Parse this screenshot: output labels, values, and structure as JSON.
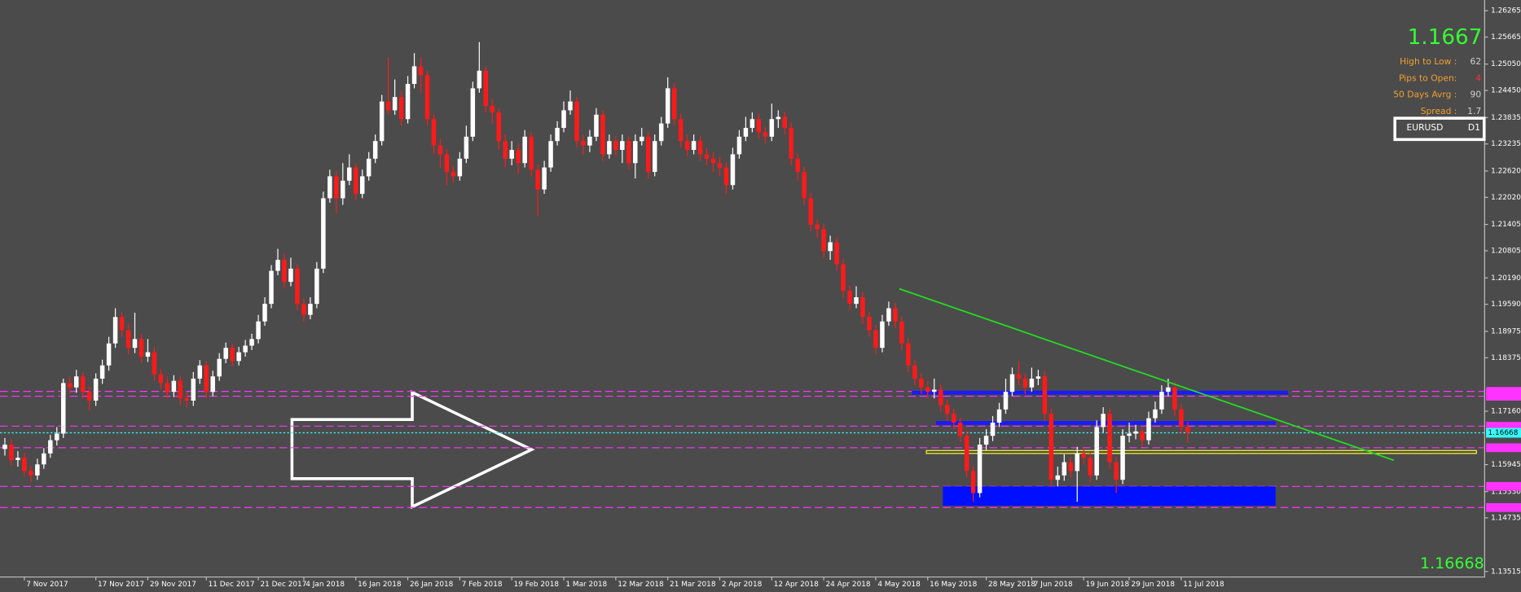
{
  "chart_data": {
    "type": "candlestick",
    "up_color": "#ffffff",
    "down_color": "#ff1a1a",
    "ylim": [
      1.13402,
      1.26507
    ],
    "yticks": [
      {
        "value": 1.26265,
        "label": "1.26265"
      },
      {
        "value": 1.25665,
        "label": "1.25665"
      },
      {
        "value": 1.2505,
        "label": "1.25050"
      },
      {
        "value": 1.2445,
        "label": "1.24450"
      },
      {
        "value": 1.23835,
        "label": "1.23835"
      },
      {
        "value": 1.23235,
        "label": "1.23235"
      },
      {
        "value": 1.2262,
        "label": "1.22620"
      },
      {
        "value": 1.2202,
        "label": "1.22020"
      },
      {
        "value": 1.21405,
        "label": "1.21405"
      },
      {
        "value": 1.20805,
        "label": "1.20805"
      },
      {
        "value": 1.2019,
        "label": "1.20190"
      },
      {
        "value": 1.1959,
        "label": "1.19590"
      },
      {
        "value": 1.18975,
        "label": "1.18975"
      },
      {
        "value": 1.18375,
        "label": "1.18375"
      },
      {
        "value": 1.1716,
        "label": "1.17160"
      },
      {
        "value": 1.15945,
        "label": "1.15945"
      },
      {
        "value": 1.1533,
        "label": "1.15330"
      },
      {
        "value": 1.14735,
        "label": "1.14735"
      },
      {
        "value": 1.13515,
        "label": "1.13515"
      }
    ],
    "categories": [
      null,
      null,
      null,
      "7 Nov 2017",
      null,
      null,
      null,
      null,
      null,
      null,
      null,
      null,
      null,
      null,
      "17 Nov 2017",
      null,
      null,
      null,
      null,
      null,
      null,
      null,
      "29 Nov 2017",
      null,
      null,
      null,
      null,
      null,
      null,
      null,
      null,
      "11 Dec 2017",
      null,
      null,
      null,
      null,
      null,
      null,
      null,
      "21 Dec 2017",
      null,
      null,
      null,
      null,
      null,
      null,
      "4 Jan 2018",
      null,
      null,
      null,
      null,
      null,
      null,
      null,
      "16 Jan 2018",
      null,
      null,
      null,
      null,
      null,
      null,
      null,
      "26 Jan 2018",
      null,
      null,
      null,
      null,
      null,
      null,
      null,
      "7 Feb 2018",
      null,
      null,
      null,
      null,
      null,
      null,
      null,
      "19 Feb 2018",
      null,
      null,
      null,
      null,
      null,
      null,
      null,
      "1 Mar 2018",
      null,
      null,
      null,
      null,
      null,
      null,
      null,
      "12 Mar 2018",
      null,
      null,
      null,
      null,
      null,
      null,
      null,
      "21 Mar 2018",
      null,
      null,
      null,
      null,
      null,
      null,
      null,
      "2 Apr 2018",
      null,
      null,
      null,
      null,
      null,
      null,
      null,
      "12 Apr 2018",
      null,
      null,
      null,
      null,
      null,
      null,
      null,
      "24 Apr 2018",
      null,
      null,
      null,
      null,
      null,
      null,
      null,
      "4 May 2018",
      null,
      null,
      null,
      null,
      null,
      null,
      null,
      "16 May 2018",
      null,
      null,
      null,
      null,
      null,
      null,
      null,
      null,
      "28 May 2018",
      null,
      null,
      null,
      null,
      null,
      null,
      "7 Jun 2018",
      null,
      null,
      null,
      null,
      null,
      null,
      null,
      "19 Jun 2018",
      null,
      null,
      null,
      null,
      null,
      null,
      "29 Jun 2018",
      null,
      null,
      null,
      null,
      null,
      null,
      null,
      "11 Jul 2018",
      null
    ],
    "candles": [
      [
        1.163,
        1.1655,
        1.1615,
        1.164
      ],
      [
        1.164,
        1.1652,
        1.1592,
        1.1605
      ],
      [
        1.1605,
        1.1625,
        1.159,
        1.161
      ],
      [
        1.161,
        1.1622,
        1.1568,
        1.158
      ],
      [
        1.158,
        1.1592,
        1.1555,
        1.157
      ],
      [
        1.157,
        1.1608,
        1.156,
        1.1595
      ],
      [
        1.1595,
        1.1632,
        1.1585,
        1.162
      ],
      [
        1.162,
        1.1662,
        1.161,
        1.165
      ],
      [
        1.165,
        1.168,
        1.1638,
        1.1665
      ],
      [
        1.1665,
        1.179,
        1.1655,
        1.178
      ],
      [
        1.178,
        1.1795,
        1.1755,
        1.177
      ],
      [
        1.177,
        1.181,
        1.1758,
        1.1795
      ],
      [
        1.1795,
        1.1805,
        1.1745,
        1.176
      ],
      [
        1.176,
        1.1772,
        1.1718,
        1.174
      ],
      [
        1.174,
        1.1802,
        1.1728,
        1.179
      ],
      [
        1.179,
        1.1833,
        1.1778,
        1.182
      ],
      [
        1.182,
        1.1885,
        1.1808,
        1.187
      ],
      [
        1.187,
        1.195,
        1.186,
        1.193
      ],
      [
        1.193,
        1.1942,
        1.1885,
        1.19
      ],
      [
        1.19,
        1.1915,
        1.1845,
        1.186
      ],
      [
        1.186,
        1.194,
        1.1848,
        1.188
      ],
      [
        1.188,
        1.1892,
        1.1825,
        1.184
      ],
      [
        1.184,
        1.188,
        1.1828,
        1.185
      ],
      [
        1.185,
        1.1862,
        1.1785,
        1.18
      ],
      [
        1.18,
        1.1812,
        1.1765,
        1.178
      ],
      [
        1.178,
        1.1795,
        1.1745,
        1.176
      ],
      [
        1.176,
        1.1798,
        1.1748,
        1.1785
      ],
      [
        1.1785,
        1.1797,
        1.173,
        1.1745
      ],
      [
        1.1745,
        1.176,
        1.1725,
        1.174
      ],
      [
        1.174,
        1.1805,
        1.1728,
        1.179
      ],
      [
        1.179,
        1.1832,
        1.1778,
        1.182
      ],
      [
        1.182,
        1.183,
        1.1745,
        1.176
      ],
      [
        1.176,
        1.1808,
        1.175,
        1.1795
      ],
      [
        1.1795,
        1.1848,
        1.1785,
        1.1835
      ],
      [
        1.1835,
        1.1872,
        1.1825,
        1.186
      ],
      [
        1.186,
        1.187,
        1.1818,
        1.183
      ],
      [
        1.183,
        1.1862,
        1.182,
        1.185
      ],
      [
        1.185,
        1.1878,
        1.184,
        1.1865
      ],
      [
        1.1865,
        1.1892,
        1.1855,
        1.188
      ],
      [
        1.188,
        1.1935,
        1.187,
        1.192
      ],
      [
        1.192,
        1.1975,
        1.191,
        1.196
      ],
      [
        1.196,
        1.2048,
        1.195,
        1.2035
      ],
      [
        1.2035,
        1.2085,
        1.2025,
        1.206
      ],
      [
        1.206,
        1.2075,
        1.1995,
        1.201
      ],
      [
        1.201,
        1.2065,
        1.2,
        1.204
      ],
      [
        1.204,
        1.205,
        1.1945,
        1.196
      ],
      [
        1.196,
        1.1972,
        1.192,
        1.1935
      ],
      [
        1.1935,
        1.1975,
        1.1925,
        1.196
      ],
      [
        1.196,
        1.2055,
        1.195,
        1.204
      ],
      [
        1.204,
        1.2215,
        1.203,
        1.22
      ],
      [
        1.22,
        1.2265,
        1.219,
        1.225
      ],
      [
        1.225,
        1.2262,
        1.2165,
        1.22
      ],
      [
        1.22,
        1.228,
        1.2185,
        1.224
      ],
      [
        1.224,
        1.23,
        1.223,
        1.227
      ],
      [
        1.227,
        1.228,
        1.2195,
        1.221
      ],
      [
        1.221,
        1.2265,
        1.22,
        1.225
      ],
      [
        1.225,
        1.2305,
        1.224,
        1.229
      ],
      [
        1.229,
        1.2345,
        1.228,
        1.233
      ],
      [
        1.233,
        1.2435,
        1.232,
        1.242
      ],
      [
        1.242,
        1.252,
        1.239,
        1.24
      ],
      [
        1.24,
        1.247,
        1.239,
        1.243
      ],
      [
        1.243,
        1.2445,
        1.2365,
        1.238
      ],
      [
        1.238,
        1.2478,
        1.237,
        1.246
      ],
      [
        1.246,
        1.253,
        1.245,
        1.25
      ],
      [
        1.25,
        1.252,
        1.244,
        1.248
      ],
      [
        1.248,
        1.249,
        1.2365,
        1.238
      ],
      [
        1.238,
        1.2392,
        1.23,
        1.232
      ],
      [
        1.232,
        1.2335,
        1.227,
        1.23
      ],
      [
        1.23,
        1.2312,
        1.223,
        1.226
      ],
      [
        1.226,
        1.2275,
        1.2235,
        1.225
      ],
      [
        1.225,
        1.2305,
        1.224,
        1.229
      ],
      [
        1.229,
        1.2365,
        1.228,
        1.234
      ],
      [
        1.234,
        1.2465,
        1.233,
        1.245
      ],
      [
        1.245,
        1.2555,
        1.244,
        1.249
      ],
      [
        1.249,
        1.25,
        1.2395,
        1.241
      ],
      [
        1.241,
        1.2425,
        1.237,
        1.2395
      ],
      [
        1.2395,
        1.2405,
        1.231,
        1.233
      ],
      [
        1.233,
        1.2345,
        1.227,
        1.229
      ],
      [
        1.229,
        1.233,
        1.2275,
        1.231
      ],
      [
        1.231,
        1.2325,
        1.2255,
        1.228
      ],
      [
        1.228,
        1.2355,
        1.227,
        1.234
      ],
      [
        1.234,
        1.235,
        1.225,
        1.2265
      ],
      [
        1.2265,
        1.2278,
        1.216,
        1.222
      ],
      [
        1.222,
        1.2285,
        1.221,
        1.227
      ],
      [
        1.227,
        1.2345,
        1.226,
        1.233
      ],
      [
        1.233,
        1.2375,
        1.232,
        1.236
      ],
      [
        1.236,
        1.242,
        1.235,
        1.24
      ],
      [
        1.24,
        1.2445,
        1.239,
        1.242
      ],
      [
        1.242,
        1.243,
        1.2315,
        1.233
      ],
      [
        1.233,
        1.2345,
        1.23,
        1.232
      ],
      [
        1.232,
        1.2355,
        1.2305,
        1.234
      ],
      [
        1.234,
        1.2405,
        1.233,
        1.239
      ],
      [
        1.239,
        1.24,
        1.2285,
        1.23
      ],
      [
        1.23,
        1.2345,
        1.229,
        1.233
      ],
      [
        1.233,
        1.2342,
        1.2295,
        1.231
      ],
      [
        1.231,
        1.2345,
        1.228,
        1.233
      ],
      [
        1.233,
        1.2342,
        1.2265,
        1.228
      ],
      [
        1.228,
        1.2345,
        1.2245,
        1.233
      ],
      [
        1.233,
        1.236,
        1.232,
        1.234
      ],
      [
        1.234,
        1.2352,
        1.2245,
        1.226
      ],
      [
        1.226,
        1.2345,
        1.225,
        1.233
      ],
      [
        1.233,
        1.2385,
        1.232,
        1.237
      ],
      [
        1.237,
        1.2475,
        1.236,
        1.245
      ],
      [
        1.245,
        1.2462,
        1.2365,
        1.238
      ],
      [
        1.238,
        1.2392,
        1.2315,
        1.233
      ],
      [
        1.233,
        1.2345,
        1.2295,
        1.231
      ],
      [
        1.231,
        1.2345,
        1.23,
        1.233
      ],
      [
        1.233,
        1.2342,
        1.2285,
        1.23
      ],
      [
        1.23,
        1.2315,
        1.2275,
        1.229
      ],
      [
        1.229,
        1.2305,
        1.226,
        1.228
      ],
      [
        1.228,
        1.2295,
        1.225,
        1.227
      ],
      [
        1.227,
        1.2282,
        1.221,
        1.223
      ],
      [
        1.223,
        1.2315,
        1.222,
        1.23
      ],
      [
        1.23,
        1.2355,
        1.229,
        1.234
      ],
      [
        1.234,
        1.2385,
        1.233,
        1.236
      ],
      [
        1.236,
        1.2395,
        1.235,
        1.238
      ],
      [
        1.238,
        1.2392,
        1.2335,
        1.235
      ],
      [
        1.235,
        1.2362,
        1.2325,
        1.234
      ],
      [
        1.234,
        1.2415,
        1.233,
        1.238
      ],
      [
        1.238,
        1.24,
        1.236,
        1.2385
      ],
      [
        1.2385,
        1.2397,
        1.2345,
        1.236
      ],
      [
        1.236,
        1.2372,
        1.2275,
        1.229
      ],
      [
        1.229,
        1.2302,
        1.224,
        1.226
      ],
      [
        1.226,
        1.2272,
        1.2185,
        1.22
      ],
      [
        1.22,
        1.2212,
        1.2125,
        1.214
      ],
      [
        1.214,
        1.2152,
        1.211,
        1.213
      ],
      [
        1.213,
        1.2142,
        1.2065,
        1.208
      ],
      [
        1.208,
        1.2115,
        1.206,
        1.21
      ],
      [
        1.21,
        1.2112,
        1.2035,
        1.205
      ],
      [
        1.205,
        1.2062,
        1.1975,
        1.199
      ],
      [
        1.199,
        1.2002,
        1.1945,
        1.196
      ],
      [
        1.196,
        1.2,
        1.195,
        1.1975
      ],
      [
        1.1975,
        1.1987,
        1.1915,
        1.193
      ],
      [
        1.193,
        1.1942,
        1.1885,
        1.19
      ],
      [
        1.19,
        1.1912,
        1.1845,
        1.186
      ],
      [
        1.186,
        1.1935,
        1.185,
        1.192
      ],
      [
        1.192,
        1.1965,
        1.191,
        1.195
      ],
      [
        1.195,
        1.1962,
        1.1905,
        1.192
      ],
      [
        1.192,
        1.1932,
        1.1855,
        1.187
      ],
      [
        1.187,
        1.1882,
        1.1805,
        1.182
      ],
      [
        1.182,
        1.1832,
        1.1775,
        1.179
      ],
      [
        1.179,
        1.1802,
        1.1755,
        1.177
      ],
      [
        1.177,
        1.1785,
        1.1745,
        1.176
      ],
      [
        1.176,
        1.179,
        1.1745,
        1.1765
      ],
      [
        1.1765,
        1.1777,
        1.1715,
        1.173
      ],
      [
        1.173,
        1.1742,
        1.1695,
        1.171
      ],
      [
        1.171,
        1.1722,
        1.1675,
        1.169
      ],
      [
        1.169,
        1.1702,
        1.1645,
        1.166
      ],
      [
        1.166,
        1.1672,
        1.1565,
        1.158
      ],
      [
        1.158,
        1.1592,
        1.151,
        1.153
      ],
      [
        1.153,
        1.1655,
        1.152,
        1.164
      ],
      [
        1.164,
        1.1675,
        1.1628,
        1.166
      ],
      [
        1.166,
        1.1705,
        1.1648,
        1.169
      ],
      [
        1.169,
        1.1735,
        1.168,
        1.172
      ],
      [
        1.172,
        1.179,
        1.171,
        1.176
      ],
      [
        1.176,
        1.1815,
        1.175,
        1.18
      ],
      [
        1.18,
        1.183,
        1.1775,
        1.179
      ],
      [
        1.179,
        1.1802,
        1.1755,
        1.177
      ],
      [
        1.177,
        1.1815,
        1.176,
        1.179
      ],
      [
        1.179,
        1.181,
        1.1775,
        1.1795
      ],
      [
        1.1795,
        1.1807,
        1.1695,
        1.171
      ],
      [
        1.171,
        1.1722,
        1.1545,
        1.156
      ],
      [
        1.156,
        1.159,
        1.1545,
        1.157
      ],
      [
        1.157,
        1.1618,
        1.1558,
        1.16
      ],
      [
        1.16,
        1.1612,
        1.1565,
        1.158
      ],
      [
        1.158,
        1.1635,
        1.151,
        1.162
      ],
      [
        1.162,
        1.1632,
        1.1595,
        1.161
      ],
      [
        1.161,
        1.1622,
        1.1555,
        1.157
      ],
      [
        1.157,
        1.1695,
        1.156,
        1.168
      ],
      [
        1.168,
        1.1725,
        1.1668,
        1.171
      ],
      [
        1.171,
        1.1722,
        1.1585,
        1.16
      ],
      [
        1.16,
        1.1612,
        1.153,
        1.156
      ],
      [
        1.156,
        1.1675,
        1.155,
        1.166
      ],
      [
        1.166,
        1.169,
        1.1645,
        1.1665
      ],
      [
        1.1665,
        1.1685,
        1.1652,
        1.167
      ],
      [
        1.167,
        1.1682,
        1.1635,
        1.165
      ],
      [
        1.165,
        1.1715,
        1.164,
        1.17
      ],
      [
        1.17,
        1.1738,
        1.169,
        1.172
      ],
      [
        1.172,
        1.1775,
        1.171,
        1.176
      ],
      [
        1.176,
        1.179,
        1.175,
        1.177
      ],
      [
        1.177,
        1.1782,
        1.1705,
        1.172
      ],
      [
        1.172,
        1.1732,
        1.1665,
        1.168
      ],
      [
        1.168,
        1.1692,
        1.1645,
        1.1667
      ]
    ],
    "last_price": 1.16668,
    "levels": [
      1.1761,
      1.175,
      1.1682,
      1.1633,
      1.1545,
      1.1497
    ],
    "level_color": "#ff33ff",
    "blue_lines": [
      1.1758,
      1.1689
    ],
    "blue_zone": [
      1.15451,
      1.15011
    ],
    "yellow_zone": [
      1.16265,
      1.16199
    ],
    "trendline": [
      1.19943,
      1.16044
    ],
    "info": {
      "price": 1.1667,
      "rows": [
        {
          "label": "High to Low :",
          "value": 62
        },
        {
          "label": "Pips to Open:",
          "value": 4
        },
        {
          "label": "50 Days Avrg :",
          "value": 90
        },
        {
          "label": "Spread :",
          "value": 1.7
        }
      ],
      "symbol": "EURUSD",
      "timeframe": "D1"
    }
  }
}
